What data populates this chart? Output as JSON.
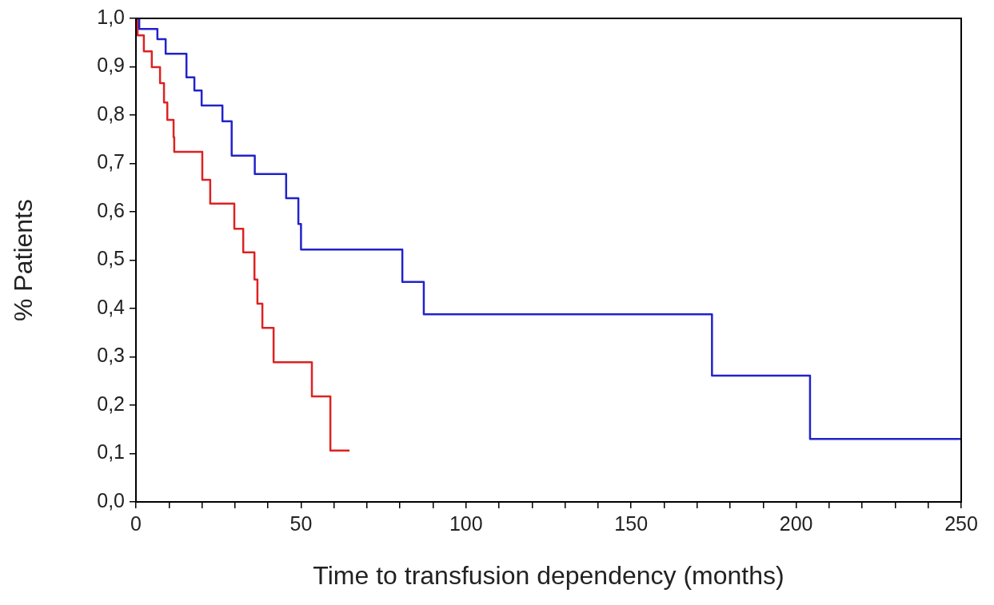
{
  "chart_data": {
    "type": "step",
    "xlabel": "Time to transfusion dependency (months)",
    "ylabel": "% Patients",
    "series": [
      {
        "color": "#2222cc",
        "x": [
          0,
          1,
          6.5,
          9,
          15.3,
          17.7,
          19.9,
          26.2,
          29,
          36,
          45.5,
          49.2,
          50,
          80.7,
          87.2,
          174.5,
          204.2,
          250
        ],
        "values": [
          1.0,
          0.978,
          0.957,
          0.927,
          0.878,
          0.851,
          0.82,
          0.787,
          0.716,
          0.678,
          0.628,
          0.575,
          0.522,
          0.455,
          0.388,
          0.261,
          0.13,
          0.13
        ]
      },
      {
        "color": "#dd2222",
        "x": [
          0,
          0.5,
          2.4,
          4.8,
          7.3,
          8.5,
          9.5,
          11.4,
          11.6,
          20.1,
          22.5,
          29.8,
          32.5,
          35.9,
          36.8,
          38.3,
          41.7,
          53.3,
          58.9,
          64.7
        ],
        "values": [
          1.0,
          0.965,
          0.932,
          0.899,
          0.866,
          0.826,
          0.79,
          0.754,
          0.724,
          0.666,
          0.617,
          0.565,
          0.516,
          0.46,
          0.41,
          0.36,
          0.289,
          0.218,
          0.106,
          0.106
        ]
      }
    ],
    "xlim": [
      0,
      250
    ],
    "xticks": [
      0,
      {
        "value": 10,
        "label": null
      },
      {
        "value": 20,
        "label": null
      },
      {
        "value": 30,
        "label": null
      },
      {
        "value": 40,
        "label": null
      },
      50,
      {
        "value": 60,
        "label": null
      },
      {
        "value": 70,
        "label": null
      },
      {
        "value": 80,
        "label": null
      },
      {
        "value": 90,
        "label": null
      },
      100,
      {
        "value": 110,
        "label": null
      },
      {
        "value": 120,
        "label": null
      },
      {
        "value": 130,
        "label": null
      },
      {
        "value": 140,
        "label": null
      },
      150,
      {
        "value": 160,
        "label": null
      },
      {
        "value": 170,
        "label": null
      },
      {
        "value": 180,
        "label": null
      },
      {
        "value": 190,
        "label": null
      },
      200,
      {
        "value": 210,
        "label": null
      },
      {
        "value": 220,
        "label": null
      },
      {
        "value": 230,
        "label": null
      },
      {
        "value": 240,
        "label": null
      },
      250
    ],
    "ylim": [
      0,
      1
    ],
    "yticks": [
      {
        "value": 0,
        "label": "0,0"
      },
      {
        "value": 0.1,
        "label": "0,1"
      },
      {
        "value": 0.2,
        "label": "0,2"
      },
      {
        "value": 0.3,
        "label": "0,3"
      },
      {
        "value": 0.4,
        "label": "0,4"
      },
      {
        "value": 0.5,
        "label": "0,5"
      },
      {
        "value": 0.6,
        "label": "0,6"
      },
      {
        "value": 0.7,
        "label": "0,7"
      },
      {
        "value": 0.8,
        "label": "0,8"
      },
      {
        "value": 0.9,
        "label": "0,9"
      },
      {
        "value": 1,
        "label": "1,0"
      }
    ],
    "grid": false,
    "legend": false,
    "marker": "none",
    "line_style": "solid"
  }
}
